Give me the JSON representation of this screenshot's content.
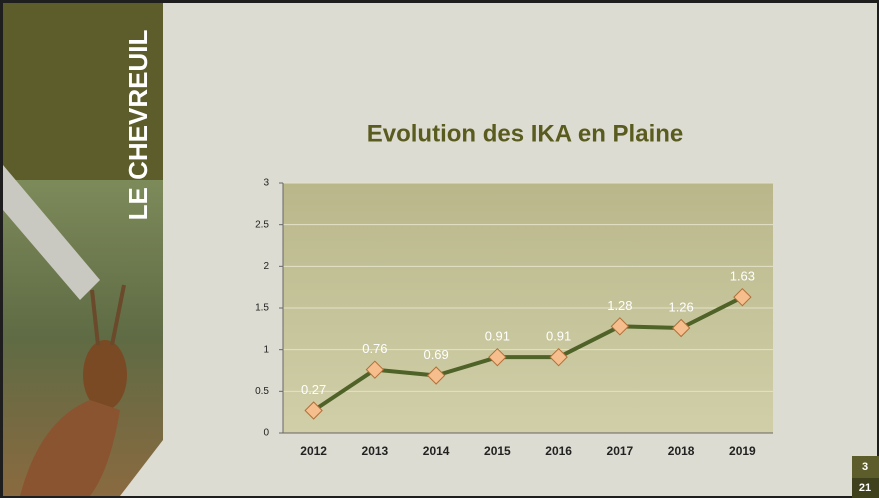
{
  "sidebar_title": "LE CHEVREUIL",
  "slide": {
    "number": 3,
    "total": 21
  },
  "chart_data": {
    "type": "line",
    "title": "Evolution des IKA en Plaine",
    "categories": [
      "2012",
      "2013",
      "2014",
      "2015",
      "2016",
      "2017",
      "2018",
      "2019"
    ],
    "values": [
      0.27,
      0.76,
      0.69,
      0.91,
      0.91,
      1.28,
      1.26,
      1.63
    ],
    "color": "#4f6228",
    "marker_color": "#f5be8c",
    "ylim": [
      0,
      3
    ],
    "yticks": [
      0,
      0.5,
      1,
      1.5,
      2,
      2.5,
      3
    ],
    "grid": true
  }
}
